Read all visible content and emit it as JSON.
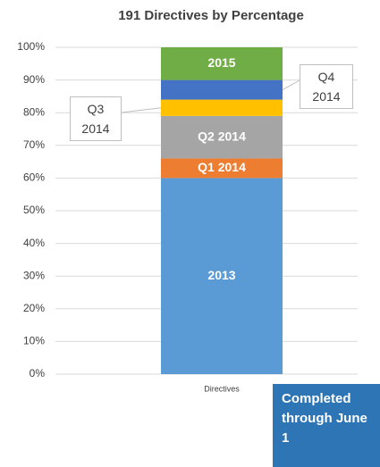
{
  "chart_data": {
    "type": "stacked_bar",
    "title": "191 Directives by Percentage",
    "categories": [
      "Directives"
    ],
    "series": [
      {
        "name": "2013",
        "color": "#5b9bd5",
        "values": [
          60
        ]
      },
      {
        "name": "Q1 2014",
        "color": "#ed7d31",
        "values": [
          6
        ]
      },
      {
        "name": "Q2 2014",
        "color": "#a5a5a5",
        "values": [
          13
        ]
      },
      {
        "name": "Q3 2014",
        "color": "#ffc000",
        "values": [
          5
        ]
      },
      {
        "name": "Q4 2014",
        "color": "#4472c4",
        "values": [
          6
        ]
      },
      {
        "name": "2015",
        "color": "#70ad47",
        "values": [
          10
        ]
      }
    ],
    "ylim": [
      0,
      100
    ],
    "yticks": [
      {
        "value": 0,
        "label": "0%"
      },
      {
        "value": 10,
        "label": "10%"
      },
      {
        "value": 20,
        "label": "20%"
      },
      {
        "value": 30,
        "label": "30%"
      },
      {
        "value": 40,
        "label": "40%"
      },
      {
        "value": 50,
        "label": "50%"
      },
      {
        "value": 60,
        "label": "60%"
      },
      {
        "value": 70,
        "label": "70%"
      },
      {
        "value": 80,
        "label": "80%"
      },
      {
        "value": 90,
        "label": "90%"
      },
      {
        "value": 100,
        "label": "100%"
      }
    ],
    "grid": true,
    "annotation": "Completed through June 1"
  }
}
